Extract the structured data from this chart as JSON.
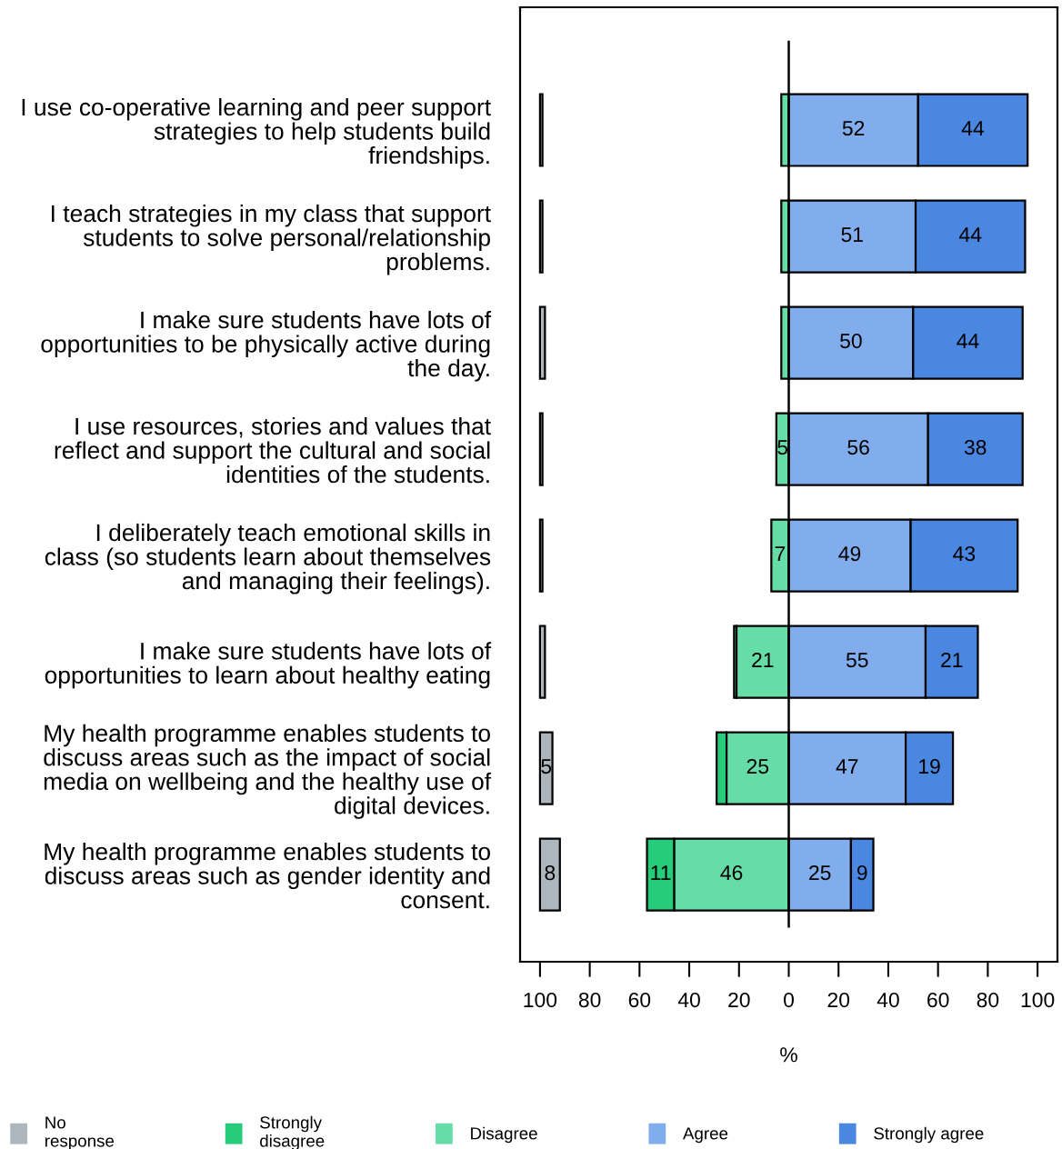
{
  "chart_data": {
    "type": "bar",
    "orientation": "horizontal",
    "xlabel": "%",
    "categories": [
      "I use co-operative learning and peer support\nstrategies to help students build\nfriendships.",
      "I teach strategies in my class that support\nstudents to solve personal/relationship\nproblems.",
      "I make sure students have lots of\nopportunities to be physically active during\nthe day.",
      "I use resources, stories and values that\nreflect and support the cultural and social\nidentities of the students.",
      "I deliberately teach emotional skills in\nclass (so students learn about themselves\nand managing their feelings).",
      "I make sure students have lots of\nopportunities to learn about healthy eating",
      "My health programme enables students to\ndiscuss areas such as the impact of social\nmedia on wellbeing and the healthy use of\ndigital devices.",
      "My health programme enables students to\ndiscuss areas such as gender identity and\nconsent."
    ],
    "series": [
      {
        "name": "No\nresponse",
        "color": "#aeb6bd",
        "base": [
          -100,
          -100,
          -100,
          -100,
          -100,
          -100,
          -100,
          -100
        ],
        "values": [
          1,
          1,
          2,
          1,
          1,
          2,
          5,
          8
        ],
        "value_labels": [
          null,
          null,
          null,
          null,
          null,
          null,
          "5",
          "8"
        ]
      },
      {
        "name": "Strongly\ndisagree",
        "color": "#27cc7b",
        "base": [
          null,
          null,
          null,
          null,
          null,
          -22,
          -29,
          -57
        ],
        "values": [
          null,
          null,
          null,
          null,
          null,
          1,
          4,
          11
        ],
        "value_labels": [
          null,
          null,
          null,
          null,
          null,
          null,
          null,
          "11"
        ]
      },
      {
        "name": "Disagree",
        "color": "#66dda6",
        "base": [
          -3,
          -3,
          -3,
          -5,
          -7,
          -21,
          -25,
          -46
        ],
        "values": [
          3,
          3,
          3,
          5,
          7,
          21,
          25,
          46
        ],
        "value_labels": [
          null,
          null,
          null,
          "5",
          "7",
          "21",
          "25",
          "46"
        ]
      },
      {
        "name": "Agree",
        "color": "#82aded",
        "base": [
          0,
          0,
          0,
          0,
          0,
          0,
          0,
          0
        ],
        "values": [
          52,
          51,
          50,
          56,
          49,
          55,
          47,
          25
        ],
        "value_labels": [
          "52",
          "51",
          "50",
          "56",
          "49",
          "55",
          "47",
          "25"
        ]
      },
      {
        "name": "Strongly agree",
        "color": "#4a87e1",
        "base": [
          52,
          51,
          50,
          56,
          49,
          55,
          47,
          25
        ],
        "values": [
          44,
          44,
          44,
          38,
          43,
          21,
          19,
          9
        ],
        "value_labels": [
          "44",
          "44",
          "44",
          "38",
          "43",
          "21",
          "19",
          "9"
        ]
      }
    ],
    "xlim": [
      -108,
      108
    ],
    "xticks": [
      {
        "value": -100,
        "label": "100"
      },
      {
        "value": -80,
        "label": "80"
      },
      {
        "value": -60,
        "label": "60"
      },
      {
        "value": -40,
        "label": "40"
      },
      {
        "value": -20,
        "label": "20"
      },
      0,
      20,
      40,
      60,
      80,
      100
    ],
    "ref_lines": [
      {
        "axis": "x",
        "value": 0,
        "color": "#000000"
      }
    ],
    "legend": "bottom",
    "grid": false
  }
}
